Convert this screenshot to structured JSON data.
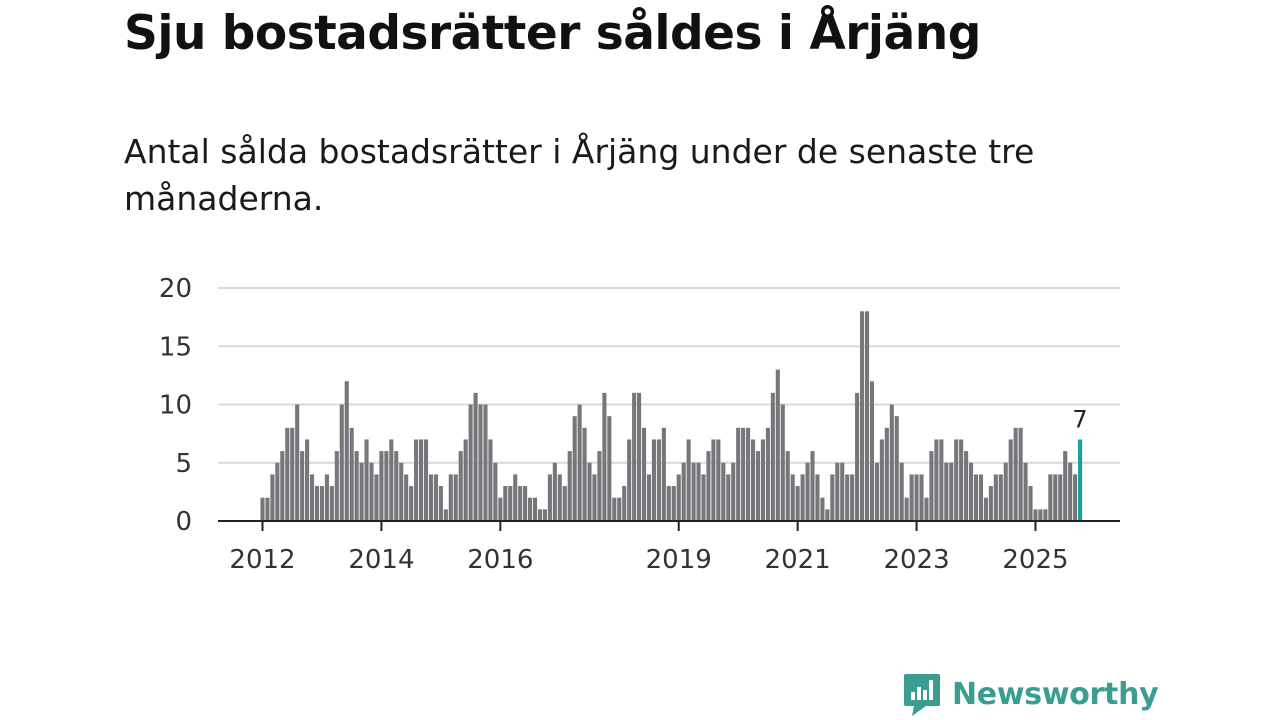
{
  "title": "Sju bostadsrätter såldes i Årjäng",
  "subtitle": "Antal sålda bostadsrätter i Årjäng under de senaste tre månaderna.",
  "brand": {
    "name": "Newsworthy",
    "color": "#3a9d91"
  },
  "colors": {
    "bar": "#77767a",
    "highlight": "#1aa19b",
    "grid": "#d9d9d9",
    "axis": "#222222"
  },
  "chart_data": {
    "type": "bar",
    "start": "2012-01",
    "ylim": [
      0,
      20
    ],
    "yticks": [
      0,
      5,
      10,
      15,
      20
    ],
    "xticks": [
      "2012",
      "2014",
      "2016",
      "2019",
      "2021",
      "2023",
      "2025"
    ],
    "grid": true,
    "values": [
      2,
      2,
      4,
      5,
      6,
      8,
      8,
      10,
      6,
      7,
      4,
      3,
      3,
      4,
      3,
      6,
      10,
      12,
      8,
      6,
      5,
      7,
      5,
      4,
      6,
      6,
      7,
      6,
      5,
      4,
      3,
      7,
      7,
      7,
      4,
      4,
      3,
      1,
      4,
      4,
      6,
      7,
      10,
      11,
      10,
      10,
      7,
      5,
      2,
      3,
      3,
      4,
      3,
      3,
      2,
      2,
      1,
      1,
      4,
      5,
      4,
      3,
      6,
      9,
      10,
      8,
      5,
      4,
      6,
      11,
      9,
      2,
      2,
      3,
      7,
      11,
      11,
      8,
      4,
      7,
      7,
      8,
      3,
      3,
      4,
      5,
      7,
      5,
      5,
      4,
      6,
      7,
      7,
      5,
      4,
      5,
      8,
      8,
      8,
      7,
      6,
      7,
      8,
      11,
      13,
      10,
      6,
      4,
      3,
      4,
      5,
      6,
      4,
      2,
      1,
      4,
      5,
      5,
      4,
      4,
      11,
      18,
      18,
      12,
      5,
      7,
      8,
      10,
      9,
      5,
      2,
      4,
      4,
      4,
      2,
      6,
      7,
      7,
      5,
      5,
      7,
      7,
      6,
      5,
      4,
      4,
      2,
      3,
      4,
      4,
      5,
      7,
      8,
      8,
      5,
      3,
      1,
      1,
      1,
      4,
      4,
      4,
      6,
      5,
      4,
      7
    ],
    "highlight_label": "7"
  }
}
